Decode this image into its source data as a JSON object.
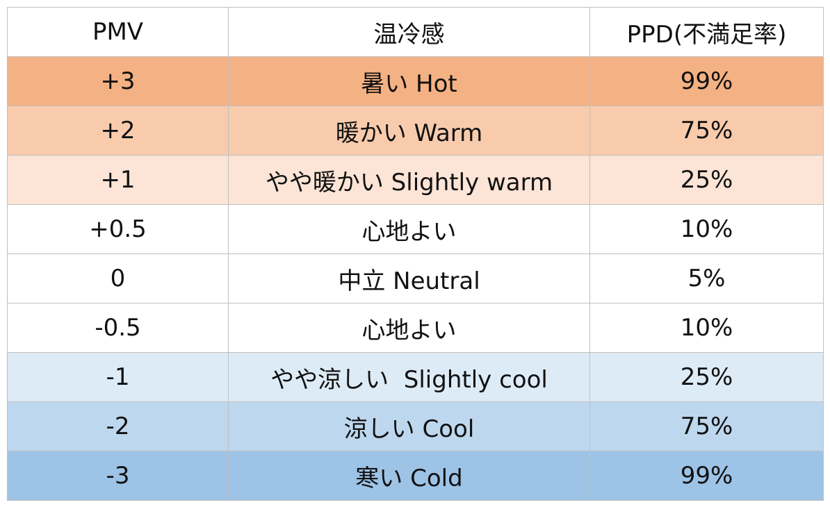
{
  "table": {
    "header": [
      "PMV",
      "温冷感",
      "PPD(不満足率)"
    ],
    "rows": [
      [
        "+3",
        "暑い Hot",
        "99%"
      ],
      [
        "+2",
        "暖かい Warm",
        "75%"
      ],
      [
        "+1",
        "やや暖かい Slightly warm",
        "25%"
      ],
      [
        "+0.5",
        "心地よい",
        "10%"
      ],
      [
        "0",
        "中立 Neutral",
        "5%"
      ],
      [
        "-0.5",
        "心地よい",
        "10%"
      ],
      [
        "-1",
        "やや涼しい  Slightly cool",
        "25%"
      ],
      [
        "-2",
        "涼しい Cool",
        "75%"
      ],
      [
        "-3",
        "寒い Cold",
        "99%"
      ]
    ],
    "row_colors": [
      "#f4b183",
      "#f8cbad",
      "#fce4d6",
      "#ffffff",
      "#ffffff",
      "#ffffff",
      "#ddebf7",
      "#bdd7ee",
      "#9dc3e6"
    ]
  }
}
